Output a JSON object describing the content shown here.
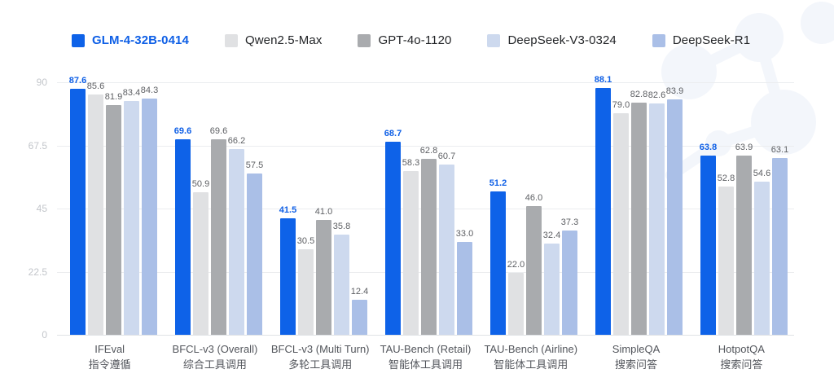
{
  "legend": {
    "items": [
      {
        "label": "GLM-4-32B-0414",
        "color": "#0e62e8",
        "highlight": true
      },
      {
        "label": "Qwen2.5-Max",
        "color": "#e0e1e3",
        "highlight": false
      },
      {
        "label": "GPT-4o-1120",
        "color": "#a9abae",
        "highlight": false
      },
      {
        "label": "DeepSeek-V3-0324",
        "color": "#cdd9ee",
        "highlight": false
      },
      {
        "label": "DeepSeek-R1",
        "color": "#aabfe7",
        "highlight": false
      }
    ]
  },
  "chart_data": {
    "type": "bar",
    "categories": [
      {
        "en": "IFEval",
        "zh": "指令遵循"
      },
      {
        "en": "BFCL-v3 (Overall)",
        "zh": "综合工具调用"
      },
      {
        "en": "BFCL-v3 (Multi Turn)",
        "zh": "多轮工具调用"
      },
      {
        "en": "TAU-Bench (Retail)",
        "zh": "智能体工具调用"
      },
      {
        "en": "TAU-Bench (Airline)",
        "zh": "智能体工具调用"
      },
      {
        "en": "SimpleQA",
        "zh": "搜索问答"
      },
      {
        "en": "HotpotQA",
        "zh": "搜索问答"
      }
    ],
    "series": [
      {
        "name": "GLM-4-32B-0414",
        "color": "#0e62e8",
        "highlight": true,
        "values": [
          87.6,
          69.6,
          41.5,
          68.7,
          51.2,
          88.1,
          63.8
        ]
      },
      {
        "name": "Qwen2.5-Max",
        "color": "#e0e1e3",
        "highlight": false,
        "values": [
          85.6,
          50.9,
          30.5,
          58.3,
          22.0,
          79.0,
          52.8
        ]
      },
      {
        "name": "GPT-4o-1120",
        "color": "#a9abae",
        "highlight": false,
        "values": [
          81.9,
          69.6,
          41.0,
          62.8,
          46.0,
          82.8,
          63.9
        ]
      },
      {
        "name": "DeepSeek-V3-0324",
        "color": "#cdd9ee",
        "highlight": false,
        "values": [
          83.4,
          66.2,
          35.8,
          60.7,
          32.4,
          82.6,
          54.6
        ]
      },
      {
        "name": "DeepSeek-R1",
        "color": "#aabfe7",
        "highlight": false,
        "values": [
          84.3,
          57.5,
          12.4,
          33.0,
          37.3,
          83.9,
          63.1
        ]
      }
    ],
    "ylim": [
      0,
      90
    ],
    "yticks": [
      {
        "value": 0,
        "label": "0"
      },
      {
        "value": 22.5,
        "label": "22.5"
      },
      {
        "value": 45,
        "label": "45"
      },
      {
        "value": 67.5,
        "label": "67.5"
      },
      {
        "value": 90,
        "label": "90"
      }
    ],
    "grid": true,
    "legend_position": "top-left",
    "value_labels": true,
    "value_decimals": 1
  },
  "colors": {
    "accent_blue": "#0e62e8",
    "grid_line": "#ebedef",
    "axis_tick_text": "#c3c6cb",
    "value_label_text": "#5e6064",
    "category_text": "#53565c",
    "decoration": "#f3f6fb"
  }
}
